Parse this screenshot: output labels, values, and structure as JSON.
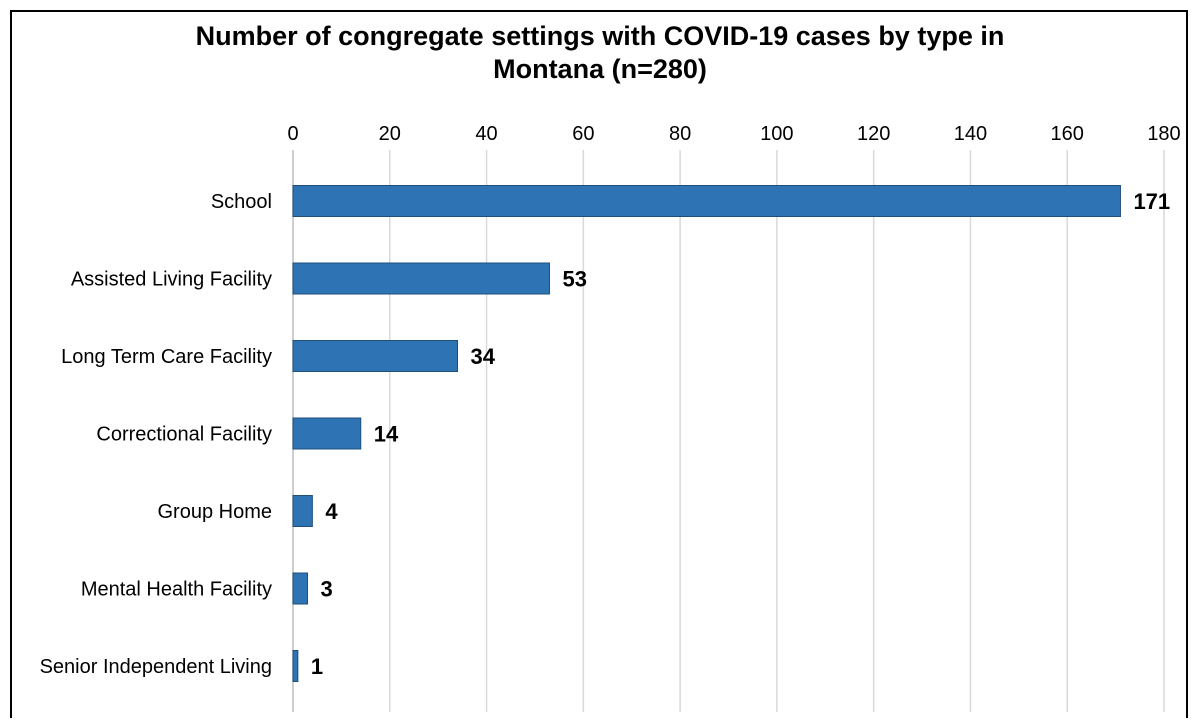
{
  "chart_data": {
    "type": "bar",
    "orientation": "horizontal",
    "title_lines": [
      "Number of congregate settings with COVID-19 cases by type in",
      "Montana (n=280)"
    ],
    "categories": [
      "School",
      "Assisted Living Facility",
      "Long Term Care Facility",
      "Correctional Facility",
      "Group Home",
      "Mental Health Facility",
      "Senior Independent Living"
    ],
    "values": [
      171,
      53,
      34,
      14,
      4,
      3,
      1
    ],
    "xlim": [
      0,
      180
    ],
    "x_ticks": [
      0,
      20,
      40,
      60,
      80,
      100,
      120,
      140,
      160,
      180
    ],
    "x_axis_position": "top",
    "grid": true,
    "legend": "none",
    "bar_color": "#2e74b5"
  }
}
